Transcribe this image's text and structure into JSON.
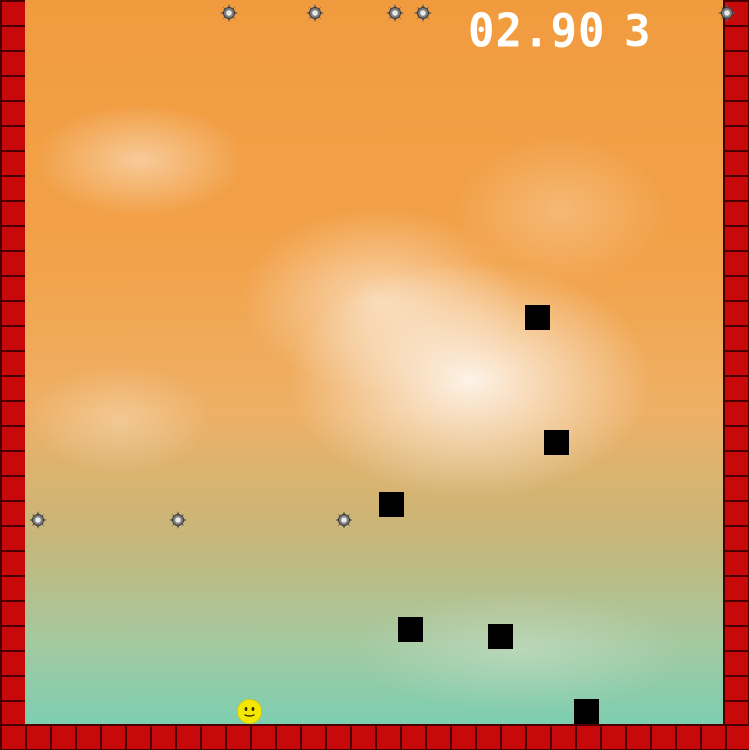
{
  "hud": {
    "timer": "02.90",
    "lives": "3"
  },
  "icons": {
    "mine": "spiked-mine-icon",
    "player": "smiley-face-icon",
    "block": "black-square-block"
  },
  "colors": {
    "wall_brick": "#c8090a",
    "wall_mortar": "#4a0000",
    "sky_top": "#f19b3e",
    "sky_bottom": "#6fd0b6",
    "player": "#f5e800",
    "block": "#000000",
    "mine": "#7a7a7a"
  }
}
